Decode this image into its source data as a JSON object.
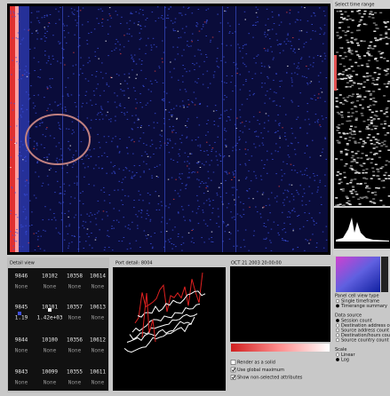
{
  "time_range_panel": {
    "title": "Select time range"
  },
  "detail_view": {
    "title": "Detail view",
    "rows": [
      [
        {
          "id": "9846",
          "value": "None"
        },
        {
          "id": "10102",
          "value": "None"
        },
        {
          "id": "10358",
          "value": "None"
        },
        {
          "id": "10614",
          "value": "None"
        }
      ],
      [
        {
          "id": "9845",
          "value": "1.19"
        },
        {
          "id": "10101",
          "value": "1.42e+03"
        },
        {
          "id": "10357",
          "value": "None"
        },
        {
          "id": "10613",
          "value": "None"
        }
      ],
      [
        {
          "id": "9844",
          "value": "None"
        },
        {
          "id": "10100",
          "value": "None"
        },
        {
          "id": "10356",
          "value": "None"
        },
        {
          "id": "10612",
          "value": "None"
        }
      ],
      [
        {
          "id": "9843",
          "value": "None"
        },
        {
          "id": "10099",
          "value": "None"
        },
        {
          "id": "10355",
          "value": "None"
        },
        {
          "id": "10611",
          "value": "None"
        }
      ]
    ]
  },
  "port_detail": {
    "title": "Port detail: 8004"
  },
  "time_view": {
    "title": "OCT 21 2003 20:00:00",
    "options": [
      {
        "label": "Render as a solid",
        "checked": false
      },
      {
        "label": "Use global maximum",
        "checked": true
      },
      {
        "label": "Show non-selected attributes",
        "checked": true
      }
    ]
  },
  "cell_view_type": {
    "title": "Panel cell view type",
    "options": [
      {
        "label": "Single timeframe",
        "selected": false
      },
      {
        "label": "Timerange summary",
        "selected": true
      }
    ]
  },
  "data_source": {
    "title": "Data source",
    "options": [
      {
        "label": "Session count",
        "selected": true
      },
      {
        "label": "Destination address count",
        "selected": false
      },
      {
        "label": "Source address count",
        "selected": false
      },
      {
        "label": "Destination/hours count",
        "selected": false
      },
      {
        "label": "Source country count",
        "selected": false
      }
    ]
  },
  "scale": {
    "title": "Scale",
    "options": [
      {
        "label": "Linear",
        "selected": false
      },
      {
        "label": "Log",
        "selected": true
      }
    ]
  }
}
